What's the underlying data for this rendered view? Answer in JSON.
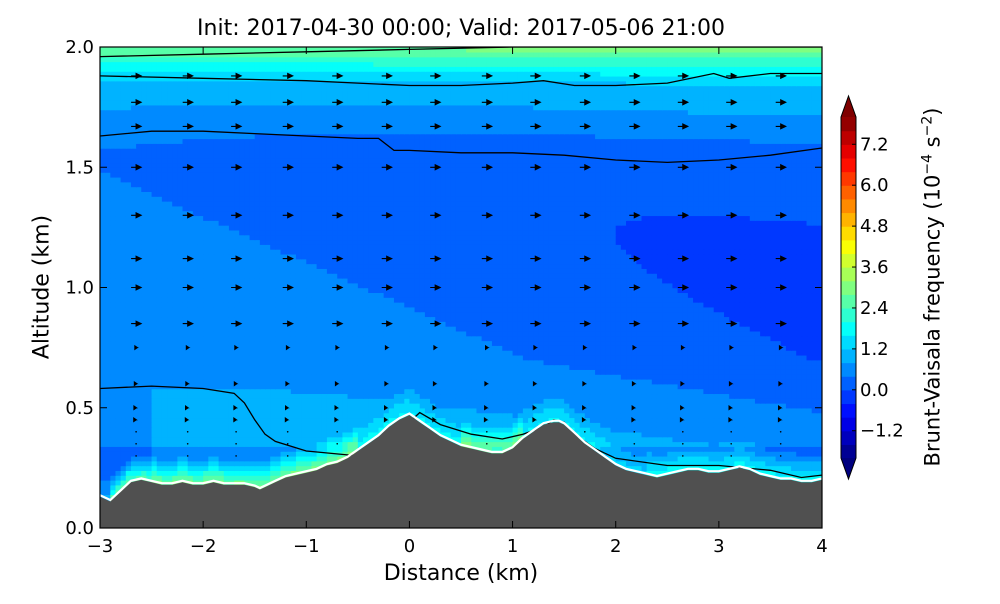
{
  "chart_data": {
    "type": "heatmap",
    "title": "Init: 2017-04-30 00:00; Valid: 2017-05-06 21:00",
    "xlabel": "Distance (km)",
    "ylabel": "Altitude (km)",
    "colorbar_label_base": "Brunt-Vaisala frequency (10",
    "colorbar_label_exp1": "−4",
    "colorbar_label_mid": " s",
    "colorbar_label_exp2": "−2",
    "colorbar_label_end": ")",
    "xlim": [
      -3,
      4
    ],
    "ylim": [
      0,
      2
    ],
    "x_ticks": [
      -3,
      -2,
      -1,
      0,
      1,
      2,
      3,
      4
    ],
    "x_tick_labels": [
      "−3",
      "−2",
      "−1",
      "0",
      "1",
      "2",
      "3",
      "4"
    ],
    "y_ticks": [
      0.0,
      0.5,
      1.0,
      1.5,
      2.0
    ],
    "y_tick_labels": [
      "0.0",
      "0.5",
      "1.0",
      "1.5",
      "2.0"
    ],
    "colorbar_range": [
      -2.0,
      8.0
    ],
    "colorbar_extend": "both",
    "colorbar_ticks": [
      -1.2,
      0.0,
      1.2,
      2.4,
      3.6,
      4.8,
      6.0,
      7.2
    ],
    "colorbar_tick_labels": [
      "−1.2",
      "0.0",
      "1.2",
      "2.4",
      "3.6",
      "4.8",
      "6.0",
      "7.2"
    ],
    "colormap": "jet",
    "terrain_color": "#505050",
    "terrain": {
      "x": [
        -3.0,
        -2.9,
        -2.8,
        -2.7,
        -2.6,
        -2.5,
        -2.4,
        -2.3,
        -2.2,
        -2.1,
        -2.0,
        -1.9,
        -1.8,
        -1.7,
        -1.6,
        -1.5,
        -1.45,
        -1.4,
        -1.3,
        -1.2,
        -1.1,
        -1.0,
        -0.9,
        -0.8,
        -0.7,
        -0.6,
        -0.5,
        -0.4,
        -0.3,
        -0.2,
        -0.1,
        0.0,
        0.1,
        0.2,
        0.3,
        0.4,
        0.5,
        0.6,
        0.7,
        0.8,
        0.9,
        1.0,
        1.1,
        1.2,
        1.3,
        1.4,
        1.45,
        1.5,
        1.6,
        1.7,
        1.8,
        1.9,
        2.0,
        2.1,
        2.2,
        2.3,
        2.4,
        2.5,
        2.6,
        2.7,
        2.8,
        2.9,
        3.0,
        3.1,
        3.2,
        3.3,
        3.4,
        3.5,
        3.6,
        3.7,
        3.8,
        3.9,
        4.0
      ],
      "y": [
        0.13,
        0.11,
        0.15,
        0.19,
        0.2,
        0.19,
        0.18,
        0.18,
        0.19,
        0.18,
        0.18,
        0.19,
        0.18,
        0.18,
        0.18,
        0.17,
        0.16,
        0.17,
        0.19,
        0.21,
        0.22,
        0.23,
        0.24,
        0.26,
        0.27,
        0.29,
        0.32,
        0.35,
        0.38,
        0.42,
        0.45,
        0.47,
        0.44,
        0.41,
        0.38,
        0.36,
        0.34,
        0.33,
        0.32,
        0.31,
        0.31,
        0.33,
        0.37,
        0.4,
        0.43,
        0.44,
        0.44,
        0.43,
        0.39,
        0.35,
        0.32,
        0.29,
        0.26,
        0.24,
        0.23,
        0.22,
        0.21,
        0.22,
        0.23,
        0.24,
        0.24,
        0.23,
        0.23,
        0.24,
        0.25,
        0.24,
        0.22,
        0.21,
        0.2,
        0.2,
        0.19,
        0.19,
        0.2
      ]
    },
    "bvf_field_description": "Values mostly 0 to 1 over domain; 2.5–4 near 1.9–2.0 km; 3–4.5 in thin layer just above terrain west of -0.5 km and near 0.5 km",
    "contours": [
      {
        "x": [
          -3.0,
          -2.0,
          -1.0,
          0.0,
          1.0,
          1.3,
          2.0,
          2.5,
          3.0,
          3.6,
          4.0
        ],
        "y": [
          1.96,
          1.97,
          1.98,
          1.99,
          2.0,
          2.0,
          2.0,
          2.0,
          2.0,
          2.0,
          2.0
        ]
      },
      {
        "x": [
          -3.0,
          -2.0,
          -1.0,
          -0.5,
          0.0,
          0.5,
          1.0,
          1.3,
          1.6,
          2.0,
          2.5,
          2.95,
          3.1,
          3.5,
          4.0
        ],
        "y": [
          1.88,
          1.87,
          1.86,
          1.85,
          1.84,
          1.84,
          1.85,
          1.86,
          1.84,
          1.84,
          1.85,
          1.89,
          1.87,
          1.89,
          1.89
        ]
      },
      {
        "x": [
          -3.0,
          -2.5,
          -2.0,
          -1.5,
          -1.0,
          -0.5,
          -0.3,
          -0.15,
          0.0,
          0.5,
          1.0,
          1.5,
          2.0,
          2.5,
          3.0,
          3.5,
          4.0
        ],
        "y": [
          1.63,
          1.65,
          1.65,
          1.64,
          1.63,
          1.62,
          1.62,
          1.57,
          1.57,
          1.56,
          1.56,
          1.55,
          1.53,
          1.52,
          1.53,
          1.55,
          1.58
        ]
      },
      {
        "x": [
          -3.0,
          -2.5,
          -2.0,
          -1.7,
          -1.6,
          -1.5,
          -1.4,
          -1.3,
          -1.0,
          -0.5,
          -0.2,
          0.0,
          0.1,
          0.3,
          0.6,
          0.9,
          1.1,
          1.3,
          1.4,
          1.5,
          1.6,
          1.8,
          2.0,
          2.5,
          3.0,
          3.5,
          3.8,
          4.0
        ],
        "y": [
          0.58,
          0.59,
          0.58,
          0.56,
          0.52,
          0.45,
          0.39,
          0.36,
          0.32,
          0.3,
          0.35,
          0.44,
          0.48,
          0.43,
          0.39,
          0.37,
          0.39,
          0.42,
          0.45,
          0.44,
          0.39,
          0.33,
          0.29,
          0.26,
          0.26,
          0.24,
          0.21,
          0.22
        ]
      }
    ],
    "wind_vector_columns_x": [
      -2.65,
      -2.15,
      -1.68,
      -1.18,
      -0.7,
      -0.22,
      0.25,
      0.75,
      1.22,
      1.7,
      2.18,
      2.65,
      3.12,
      3.6
    ],
    "wind_vector_rows_y": [
      0.3,
      0.35,
      0.4,
      0.45,
      0.5,
      0.6,
      0.75,
      0.85,
      1.0,
      1.12,
      1.3,
      1.5,
      1.67,
      1.77,
      1.88
    ]
  }
}
